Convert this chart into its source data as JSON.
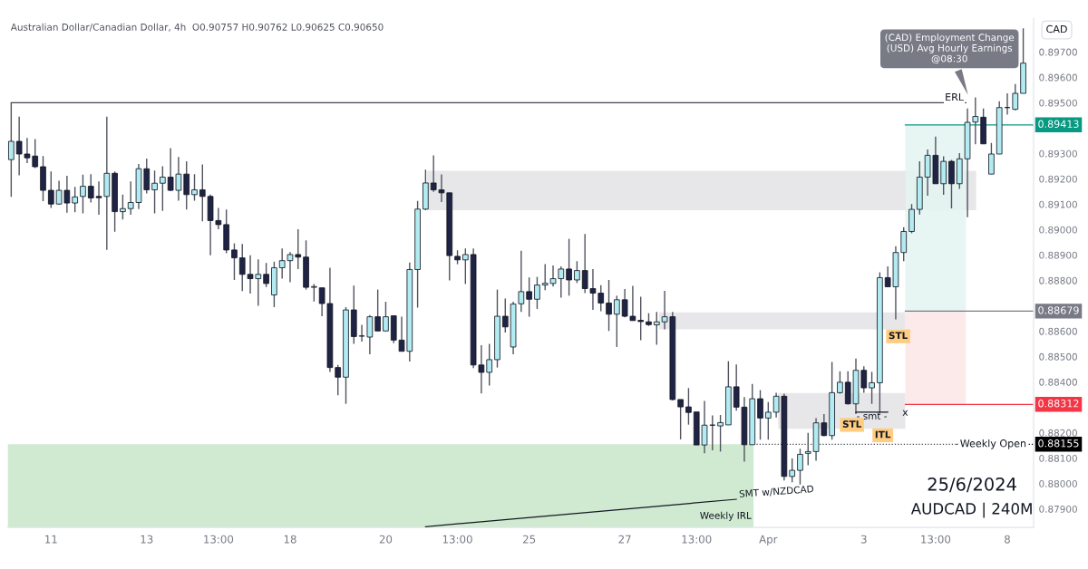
{
  "chart_data": {
    "type": "candlestick",
    "title": "Australian Dollar/Canadian Dollar, 4h  O0.90757 H0.90762 L0.90625 C0.90650",
    "categories": [
      null,
      null,
      null,
      null,
      null,
      "11",
      null,
      null,
      null,
      null,
      null,
      null,
      null,
      null,
      null,
      null,
      null,
      "13",
      null,
      null,
      null,
      null,
      null,
      null,
      null,
      null,
      "13:00",
      null,
      null,
      null,
      null,
      null,
      null,
      null,
      null,
      "18",
      null,
      null,
      null,
      null,
      null,
      null,
      null,
      null,
      null,
      null,
      null,
      "20",
      null,
      null,
      null,
      null,
      null,
      null,
      null,
      null,
      "13:00",
      null,
      null,
      null,
      null,
      null,
      null,
      null,
      null,
      "25",
      null,
      null,
      null,
      null,
      null,
      null,
      null,
      null,
      null,
      null,
      null,
      "27",
      null,
      null,
      null,
      null,
      null,
      null,
      null,
      null,
      "13:00",
      null,
      null,
      null,
      null,
      null,
      null,
      null,
      null,
      "Apr",
      null,
      null,
      null,
      null,
      null,
      null,
      null,
      null,
      null,
      null,
      null,
      "3",
      null,
      null,
      null,
      null,
      null,
      null,
      null,
      null,
      "13:00",
      null,
      null,
      null,
      null,
      null,
      null,
      null,
      null,
      "8",
      null,
      null
    ],
    "ohlc": [
      [
        0.89276,
        0.895,
        0.89129,
        0.89348
      ],
      [
        0.89348,
        0.89445,
        0.89214,
        0.89298
      ],
      [
        0.89298,
        0.89361,
        0.89262,
        0.89283
      ],
      [
        0.8929,
        0.89357,
        0.89243,
        0.89248
      ],
      [
        0.89248,
        0.8929,
        0.89112,
        0.89155
      ],
      [
        0.89155,
        0.89229,
        0.89086,
        0.89101
      ],
      [
        0.89101,
        0.89193,
        0.89098,
        0.89155
      ],
      [
        0.89155,
        0.89212,
        0.89067,
        0.89105
      ],
      [
        0.89105,
        0.89169,
        0.89069,
        0.89129
      ],
      [
        0.89131,
        0.89217,
        0.89064,
        0.89171
      ],
      [
        0.89171,
        0.89219,
        0.89107,
        0.89125
      ],
      [
        0.89131,
        0.8919,
        0.89059,
        0.89126
      ],
      [
        0.89131,
        0.89445,
        0.88921,
        0.89222
      ],
      [
        0.89222,
        0.89229,
        0.88992,
        0.89071
      ],
      [
        0.89071,
        0.89138,
        0.8904,
        0.89083
      ],
      [
        0.89083,
        0.8919,
        0.89059,
        0.89107
      ],
      [
        0.89107,
        0.89259,
        0.89081,
        0.8924
      ],
      [
        0.8924,
        0.8928,
        0.89143,
        0.89157
      ],
      [
        0.89157,
        0.89233,
        0.89064,
        0.89183
      ],
      [
        0.89183,
        0.8925,
        0.89074,
        0.89207
      ],
      [
        0.89207,
        0.89321,
        0.89152,
        0.89155
      ],
      [
        0.89155,
        0.89286,
        0.89114,
        0.89219
      ],
      [
        0.89219,
        0.89269,
        0.89079,
        0.89138
      ],
      [
        0.89138,
        0.89219,
        0.89114,
        0.89157
      ],
      [
        0.89157,
        0.89257,
        0.89033,
        0.89131
      ],
      [
        0.89131,
        0.89138,
        0.88899,
        0.89036
      ],
      [
        0.89036,
        0.89086,
        0.89002,
        0.8902
      ],
      [
        0.8902,
        0.89079,
        0.88907,
        0.8892
      ],
      [
        0.8892,
        0.88946,
        0.88802,
        0.88889
      ],
      [
        0.88889,
        0.88944,
        0.88758,
        0.88824
      ],
      [
        0.88824,
        0.88899,
        0.88748,
        0.88807
      ],
      [
        0.88807,
        0.88883,
        0.887,
        0.88824
      ],
      [
        0.88824,
        0.88869,
        0.88774,
        0.88788
      ],
      [
        0.88743,
        0.88874,
        0.88695,
        0.8885
      ],
      [
        0.8885,
        0.88926,
        0.88807,
        0.88878
      ],
      [
        0.88878,
        0.88912,
        0.88793,
        0.88902
      ],
      [
        0.88902,
        0.89002,
        0.88845,
        0.88892
      ],
      [
        0.88892,
        0.88958,
        0.88764,
        0.88773
      ],
      [
        0.88773,
        0.88786,
        0.88717,
        0.88776
      ],
      [
        0.88771,
        0.88771,
        0.88659,
        0.88709
      ],
      [
        0.88709,
        0.8885,
        0.8844,
        0.88457
      ],
      [
        0.88457,
        0.88467,
        0.88348,
        0.88419
      ],
      [
        0.88419,
        0.88695,
        0.88314,
        0.88684
      ],
      [
        0.88684,
        0.8878,
        0.8855,
        0.88579
      ],
      [
        0.88581,
        0.88625,
        0.88559,
        0.88581
      ],
      [
        0.88577,
        0.88664,
        0.88509,
        0.88657
      ],
      [
        0.88657,
        0.88764,
        0.88601,
        0.88601
      ],
      [
        0.88601,
        0.88716,
        0.88601,
        0.88657
      ],
      [
        0.88661,
        0.88661,
        0.88553,
        0.88565
      ],
      [
        0.88565,
        0.88657,
        0.88521,
        0.88521
      ],
      [
        0.88521,
        0.88871,
        0.88481,
        0.88843
      ],
      [
        0.88843,
        0.89113,
        0.88693,
        0.89081
      ],
      [
        0.89081,
        0.89236,
        0.89077,
        0.89184
      ],
      [
        0.89184,
        0.89293,
        0.89149,
        0.89157
      ],
      [
        0.89157,
        0.89218,
        0.89109,
        0.89145
      ],
      [
        0.89145,
        0.89145,
        0.888,
        0.88898
      ],
      [
        0.88895,
        0.88919,
        0.88864,
        0.88881
      ],
      [
        0.88881,
        0.88926,
        0.88786,
        0.88902
      ],
      [
        0.88902,
        0.88926,
        0.88455,
        0.88467
      ],
      [
        0.88467,
        0.88545,
        0.88355,
        0.88438
      ],
      [
        0.88438,
        0.8855,
        0.88386,
        0.88488
      ],
      [
        0.88488,
        0.88764,
        0.88457,
        0.88659
      ],
      [
        0.88659,
        0.88729,
        0.88595,
        0.88617
      ],
      [
        0.88538,
        0.88716,
        0.88509,
        0.88707
      ],
      [
        0.88708,
        0.88917,
        0.88676,
        0.88756
      ],
      [
        0.88756,
        0.88812,
        0.88657,
        0.88726
      ],
      [
        0.88726,
        0.88814,
        0.88688,
        0.88782
      ],
      [
        0.88782,
        0.88864,
        0.88762,
        0.88789
      ],
      [
        0.88788,
        0.88859,
        0.88776,
        0.88807
      ],
      [
        0.88807,
        0.88855,
        0.88732,
        0.88845
      ],
      [
        0.88845,
        0.88964,
        0.8874,
        0.88802
      ],
      [
        0.88802,
        0.88876,
        0.8879,
        0.88839
      ],
      [
        0.88839,
        0.88983,
        0.8875,
        0.88768
      ],
      [
        0.88768,
        0.88845,
        0.88684,
        0.8875
      ],
      [
        0.8875,
        0.88781,
        0.88679,
        0.88711
      ],
      [
        0.88711,
        0.88802,
        0.88601,
        0.88667
      ],
      [
        0.88667,
        0.8874,
        0.88538,
        0.88724
      ],
      [
        0.88724,
        0.88766,
        0.88655,
        0.88659
      ],
      [
        0.88659,
        0.88779,
        0.88642,
        0.88642
      ],
      [
        0.88643,
        0.88736,
        0.88565,
        0.88638
      ],
      [
        0.88637,
        0.88671,
        0.88621,
        0.88626
      ],
      [
        0.88625,
        0.88676,
        0.88547,
        0.88637
      ],
      [
        0.88637,
        0.88759,
        0.88607,
        0.88657
      ],
      [
        0.88657,
        0.88676,
        0.88327,
        0.88331
      ],
      [
        0.88331,
        0.88331,
        0.88174,
        0.88302
      ],
      [
        0.88302,
        0.88376,
        0.88232,
        0.8828
      ],
      [
        0.88282,
        0.88282,
        0.88152,
        0.88152
      ],
      [
        0.88152,
        0.88325,
        0.88119,
        0.8823
      ],
      [
        0.8823,
        0.88268,
        0.88131,
        0.8823
      ],
      [
        0.88227,
        0.8827,
        0.88126,
        0.8824
      ],
      [
        0.88231,
        0.88482,
        0.88231,
        0.88381
      ],
      [
        0.88381,
        0.88469,
        0.88287,
        0.88301
      ],
      [
        0.88301,
        0.88341,
        0.88086,
        0.88153
      ],
      [
        0.88153,
        0.88392,
        0.88153,
        0.88334
      ],
      [
        0.88334,
        0.88368,
        0.88173,
        0.88258
      ],
      [
        0.88258,
        0.88321,
        0.88173,
        0.88281
      ],
      [
        0.88281,
        0.88358,
        0.8826,
        0.88344
      ],
      [
        0.88344,
        0.88354,
        0.88012,
        0.88028
      ],
      [
        0.88028,
        0.88099,
        0.88005,
        0.88052
      ],
      [
        0.88052,
        0.88137,
        0.87996,
        0.88115
      ],
      [
        0.88119,
        0.882,
        0.88072,
        0.88126
      ],
      [
        0.88126,
        0.88258,
        0.8809,
        0.88239
      ],
      [
        0.88239,
        0.88274,
        0.88186,
        0.88189
      ],
      [
        0.88189,
        0.88479,
        0.88173,
        0.88358
      ],
      [
        0.88358,
        0.88442,
        0.88354,
        0.88399
      ],
      [
        0.88399,
        0.88442,
        0.88311,
        0.88314
      ],
      [
        0.88314,
        0.88492,
        0.88274,
        0.88446
      ],
      [
        0.88446,
        0.88462,
        0.88358,
        0.88377
      ],
      [
        0.88377,
        0.8844,
        0.88314,
        0.88397
      ],
      [
        0.88397,
        0.88832,
        0.88276,
        0.88811
      ],
      [
        0.88811,
        0.88855,
        0.88775,
        0.88775
      ],
      [
        0.88775,
        0.88935,
        0.88647,
        0.8891
      ],
      [
        0.8891,
        0.8901,
        0.88876,
        0.88993
      ],
      [
        0.88993,
        0.89101,
        0.88986,
        0.8908
      ],
      [
        0.8908,
        0.89269,
        0.8906,
        0.89207
      ],
      [
        0.89207,
        0.89316,
        0.89134,
        0.89293
      ],
      [
        0.89293,
        0.89367,
        0.89181,
        0.89181
      ],
      [
        0.89181,
        0.89289,
        0.89137,
        0.89269
      ],
      [
        0.89269,
        0.89275,
        0.89084,
        0.89181
      ],
      [
        0.89181,
        0.89302,
        0.89161,
        0.89279
      ],
      [
        0.89279,
        0.89477,
        0.89049,
        0.89423
      ],
      [
        0.89424,
        0.89521,
        0.89336,
        0.89446
      ],
      [
        0.89443,
        0.89477,
        0.89338,
        0.89338
      ],
      [
        0.89219,
        0.89342,
        0.89219,
        0.89298
      ],
      [
        0.89298,
        0.89506,
        0.89298,
        0.89481
      ],
      [
        0.89481,
        0.89537,
        0.89453,
        0.89481
      ],
      [
        0.89474,
        0.89574,
        0.8947,
        0.89537
      ],
      [
        0.89537,
        0.89793,
        0.89537,
        0.89656
      ]
    ],
    "series": [
      {
        "name": "SMT w/NZDCAD",
        "type": "line",
        "color": "#131722",
        "values": [
          null,
          null,
          null,
          null,
          null,
          null,
          null,
          null,
          null,
          null,
          null,
          null,
          null,
          null,
          null,
          null,
          null,
          null,
          null,
          null,
          null,
          null,
          null,
          null,
          null,
          null,
          null,
          null,
          null,
          null,
          null,
          null,
          null,
          null,
          null,
          null,
          null,
          null,
          null,
          null,
          null,
          null,
          null,
          null,
          null,
          null,
          null,
          null,
          null,
          null,
          null,
          null,
          0.8783,
          null,
          null,
          null,
          null,
          null,
          null,
          null,
          null,
          null,
          null,
          null,
          null,
          null,
          null,
          null,
          null,
          null,
          null,
          null,
          null,
          null,
          null,
          null,
          null,
          null,
          null,
          null,
          null,
          null,
          null,
          null,
          null,
          null,
          null,
          null,
          null,
          null,
          null,
          0.87938,
          null,
          null,
          null,
          null,
          null,
          null,
          null,
          null,
          null,
          null,
          null,
          null,
          null,
          null,
          null,
          null,
          null,
          null,
          null,
          null,
          null,
          null,
          null,
          null,
          null,
          null,
          null,
          null,
          null,
          null,
          null,
          null,
          null,
          null,
          null,
          null
        ]
      },
      {
        "name": "- smt -",
        "type": "line",
        "color": "#131722",
        "values": [
          null,
          null,
          null,
          null,
          null,
          null,
          null,
          null,
          null,
          null,
          null,
          null,
          null,
          null,
          null,
          null,
          null,
          null,
          null,
          null,
          null,
          null,
          null,
          null,
          null,
          null,
          null,
          null,
          null,
          null,
          null,
          null,
          null,
          null,
          null,
          null,
          null,
          null,
          null,
          null,
          null,
          null,
          null,
          null,
          null,
          null,
          null,
          null,
          null,
          null,
          null,
          null,
          null,
          null,
          null,
          null,
          null,
          null,
          null,
          null,
          null,
          null,
          null,
          null,
          null,
          null,
          null,
          null,
          null,
          null,
          null,
          null,
          null,
          null,
          null,
          null,
          null,
          null,
          null,
          null,
          null,
          null,
          null,
          null,
          null,
          null,
          null,
          null,
          null,
          null,
          null,
          null,
          null,
          null,
          null,
          null,
          null,
          null,
          null,
          null,
          null,
          null,
          null,
          null,
          null,
          null,
          0.88281,
          null,
          null,
          null,
          0.88281,
          null,
          null,
          null,
          null,
          null,
          null,
          null,
          null,
          null,
          null,
          null,
          null,
          null,
          null,
          null,
          null,
          null
        ]
      }
    ],
    "ylim": [
      0.87827,
      0.89833
    ],
    "yticks": [
      {
        "value": 0.879,
        "label": "0.87900"
      },
      {
        "value": 0.88,
        "label": "0.88000"
      },
      {
        "value": 0.881,
        "label": "0.88100"
      },
      {
        "value": 0.882,
        "label": "0.88200"
      },
      {
        "value": 0.884,
        "label": "0.88400"
      },
      {
        "value": 0.885,
        "label": "0.88500"
      },
      {
        "value": 0.886,
        "label": "0.88600"
      },
      {
        "value": 0.888,
        "label": "0.88800"
      },
      {
        "value": 0.889,
        "label": "0.88900"
      },
      {
        "value": 0.89,
        "label": "0.89000"
      },
      {
        "value": 0.891,
        "label": "0.89100"
      },
      {
        "value": 0.892,
        "label": "0.89200"
      },
      {
        "value": 0.893,
        "label": "0.89300"
      },
      {
        "value": 0.895,
        "label": "0.89500"
      },
      {
        "value": 0.896,
        "label": "0.89600"
      },
      {
        "value": 0.897,
        "label": "0.89700"
      }
    ],
    "ref_lines": [
      {
        "axis": "y",
        "value": 0.895,
        "label": "ERL",
        "color": "#434651"
      },
      {
        "axis": "y",
        "value": 0.88155,
        "label": "Weekly Open",
        "color": "#434651",
        "line_style": "dotted"
      },
      {
        "axis": "y",
        "value": 0.88155,
        "label": "0.88155",
        "color": "#000000",
        "line_style": "dotted"
      },
      {
        "axis": "y",
        "value": 0.89413,
        "label": "0.89413",
        "color": "#089981"
      },
      {
        "axis": "y",
        "value": 0.88679,
        "label": "0.88679",
        "color": "#787b86"
      },
      {
        "axis": "y",
        "value": 0.88312,
        "label": "0.88312",
        "color": "#f23645"
      }
    ],
    "bands": [
      {
        "axis": "y",
        "from": 0.89077,
        "to": 0.89232,
        "color": "#e3e3e6"
      },
      {
        "axis": "y",
        "from": 0.88607,
        "to": 0.88674,
        "color": "#e3e3e6"
      },
      {
        "axis": "y",
        "from": 0.88216,
        "to": 0.88357,
        "color": "#e3e3e6"
      },
      {
        "axis": "y",
        "from": 0.87827,
        "to": 0.88155,
        "color": "#c8e6c9",
        "label": "Weekly IRL"
      },
      {
        "axis": "y",
        "from": 0.88679,
        "to": 0.89413,
        "color": "#e3f3f1"
      },
      {
        "axis": "y",
        "from": 0.88312,
        "to": 0.88679,
        "color": "#fce6e8"
      }
    ],
    "annotations": [
      "(CAD) Employment Change\n(USD) Avg Hourly Earnings\n@08:30",
      "25/6/2024",
      "AUDCAD | 240M",
      "CAD",
      {
        "text": "STL",
        "y": 0.8858
      },
      {
        "text": "STL",
        "y": 0.88231
      },
      {
        "text": "ITL",
        "y": 0.8819
      },
      {
        "text": "x",
        "y": 0.88278
      }
    ]
  }
}
